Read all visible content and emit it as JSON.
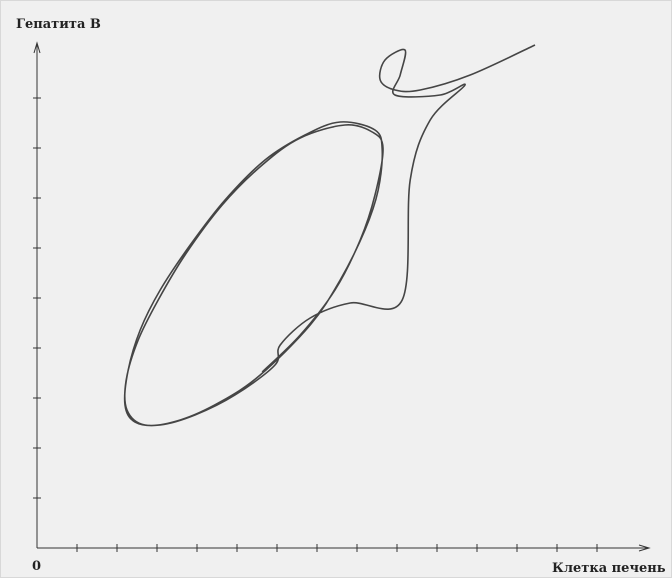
{
  "chart_data": {
    "type": "line",
    "y_label": "Гепатита В",
    "x_label": "Клетка печень",
    "origin_label": "0",
    "xlim": [
      0,
      15.3
    ],
    "ylim": [
      0,
      10.1
    ],
    "xticks": [
      1,
      2,
      3,
      4,
      5,
      6,
      7,
      8,
      9,
      10,
      11,
      12,
      13,
      14
    ],
    "yticks": [
      1,
      2,
      3,
      4,
      5,
      6,
      7,
      8,
      9
    ],
    "series": [
      {
        "color": "#454545",
        "x": [
          12.45,
          10.83,
          9.58,
          8.95,
          8.58,
          8.7,
          9.2,
          9.08,
          8.95,
          10.08,
          10.7,
          9.83,
          9.33,
          9.13,
          7.83,
          6.83,
          6.08,
          5.95,
          4.95,
          3.95,
          3.08,
          2.45,
          2.2,
          2.28,
          2.58,
          3.08,
          3.83,
          4.7,
          5.7,
          6.7,
          7.58,
          8.45,
          8.63,
          8.53,
          8.2,
          7.58,
          6.83,
          5.58,
          4.58,
          3.58,
          2.7,
          2.25,
          2.23,
          2.53,
          3.03,
          3.7,
          4.63,
          5.63,
          6.58,
          7.7,
          8.38,
          8.65,
          8.45,
          8.08,
          7.45,
          6.58,
          5.63
        ],
        "values": [
          10.06,
          9.46,
          9.16,
          9.16,
          9.36,
          9.76,
          9.96,
          9.46,
          9.06,
          9.06,
          9.26,
          8.56,
          7.36,
          4.96,
          4.9,
          4.6,
          4.06,
          3.66,
          3.06,
          2.66,
          2.46,
          2.52,
          2.86,
          3.56,
          4.36,
          5.16,
          6.06,
          6.96,
          7.76,
          8.26,
          8.52,
          8.36,
          7.96,
          7.16,
          6.36,
          5.36,
          4.46,
          3.46,
          2.92,
          2.56,
          2.46,
          2.76,
          3.36,
          4.16,
          4.96,
          5.86,
          6.86,
          7.66,
          8.2,
          8.46,
          8.32,
          8.0,
          7.06,
          6.16,
          5.16,
          4.26,
          3.52
        ]
      }
    ]
  }
}
